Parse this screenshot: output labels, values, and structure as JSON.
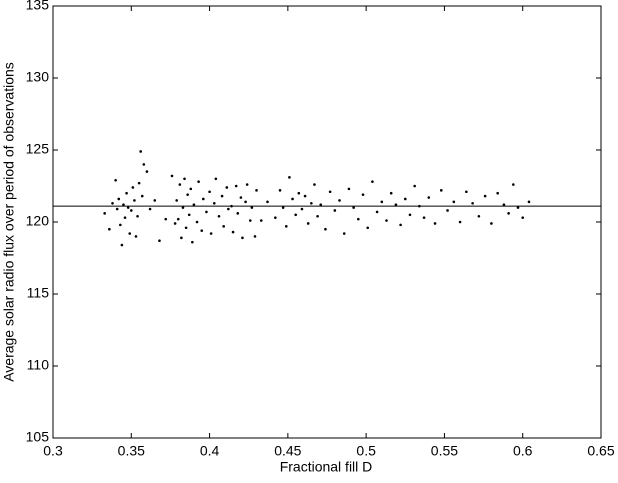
{
  "chart_data": {
    "type": "scatter",
    "x_label": "Fractional fill D",
    "y_label": "Average solar radio flux over period of observations",
    "xlim": [
      0.3,
      0.65
    ],
    "xticks": [
      0.3,
      0.35,
      0.4,
      0.45,
      0.5,
      0.55,
      0.6,
      0.65
    ],
    "ylim": [
      105,
      135
    ],
    "yticks": [
      105,
      110,
      115,
      120,
      125,
      130,
      135
    ],
    "grid": false,
    "color": "#000000",
    "hline": 121.1,
    "x": [
      0.333,
      0.336,
      0.338,
      0.34,
      0.341,
      0.342,
      0.343,
      0.344,
      0.345,
      0.346,
      0.347,
      0.348,
      0.349,
      0.35,
      0.351,
      0.352,
      0.353,
      0.354,
      0.355,
      0.356,
      0.357,
      0.358,
      0.36,
      0.362,
      0.365,
      0.368,
      0.372,
      0.376,
      0.378,
      0.379,
      0.38,
      0.381,
      0.382,
      0.383,
      0.384,
      0.385,
      0.386,
      0.387,
      0.388,
      0.389,
      0.39,
      0.392,
      0.393,
      0.395,
      0.396,
      0.398,
      0.4,
      0.401,
      0.403,
      0.404,
      0.406,
      0.408,
      0.409,
      0.411,
      0.412,
      0.414,
      0.415,
      0.417,
      0.418,
      0.42,
      0.421,
      0.423,
      0.424,
      0.426,
      0.427,
      0.429,
      0.43,
      0.433,
      0.437,
      0.442,
      0.445,
      0.447,
      0.449,
      0.451,
      0.453,
      0.455,
      0.457,
      0.459,
      0.461,
      0.463,
      0.465,
      0.467,
      0.469,
      0.471,
      0.474,
      0.477,
      0.48,
      0.483,
      0.486,
      0.489,
      0.492,
      0.495,
      0.498,
      0.501,
      0.504,
      0.507,
      0.51,
      0.513,
      0.516,
      0.519,
      0.522,
      0.525,
      0.528,
      0.531,
      0.534,
      0.537,
      0.54,
      0.544,
      0.548,
      0.552,
      0.556,
      0.56,
      0.564,
      0.568,
      0.572,
      0.576,
      0.58,
      0.584,
      0.588,
      0.591,
      0.594,
      0.597,
      0.6,
      0.604
    ],
    "values": [
      120.6,
      119.5,
      121.3,
      122.9,
      120.9,
      121.6,
      119.8,
      118.4,
      121.2,
      120.3,
      122.0,
      121.0,
      119.2,
      120.8,
      122.4,
      121.5,
      119.0,
      120.4,
      122.7,
      124.9,
      121.8,
      124.0,
      123.5,
      120.9,
      121.5,
      118.7,
      120.2,
      123.2,
      119.9,
      121.5,
      120.2,
      122.6,
      118.9,
      121.0,
      123.0,
      119.6,
      121.9,
      120.5,
      122.3,
      118.6,
      121.2,
      120.0,
      122.8,
      119.4,
      121.6,
      120.7,
      122.1,
      119.2,
      121.3,
      123.0,
      120.4,
      121.8,
      119.7,
      122.4,
      120.9,
      121.1,
      119.3,
      122.5,
      120.6,
      121.7,
      118.9,
      121.4,
      122.6,
      120.1,
      121.0,
      119.0,
      122.2,
      120.1,
      121.4,
      120.3,
      122.2,
      121.0,
      119.7,
      123.1,
      121.6,
      120.5,
      122.0,
      120.9,
      121.8,
      119.9,
      121.3,
      122.6,
      120.4,
      121.2,
      119.5,
      122.1,
      120.8,
      121.5,
      119.2,
      122.3,
      121.0,
      120.2,
      121.9,
      119.6,
      122.8,
      120.7,
      121.4,
      120.1,
      122.0,
      121.2,
      119.8,
      121.6,
      120.5,
      122.5,
      121.1,
      120.3,
      121.7,
      119.9,
      122.2,
      120.8,
      121.4,
      120.0,
      122.1,
      121.3,
      120.4,
      121.8,
      119.9,
      122.0,
      121.2,
      120.6,
      122.6,
      121.0,
      120.3,
      121.4
    ]
  }
}
